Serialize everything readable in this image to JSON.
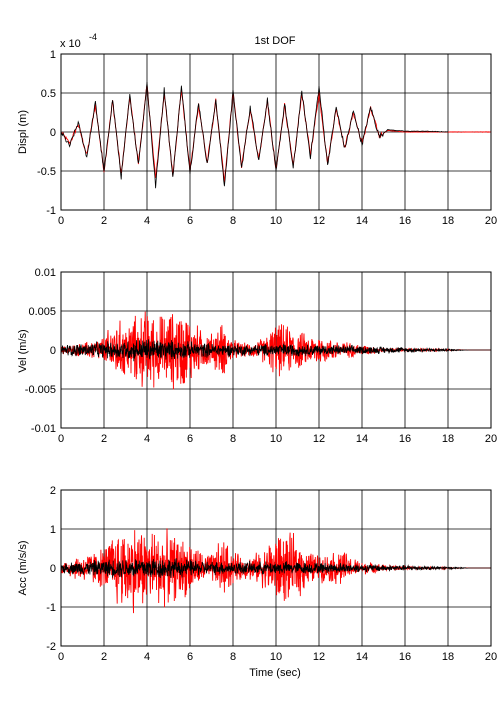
{
  "chart_data": [
    {
      "type": "line",
      "title": "1st DOF",
      "xlabel": "",
      "ylabel": "Displ (m)",
      "scale_label": "x 10",
      "scale_exponent": "-4",
      "xlim": [
        0,
        20
      ],
      "ylim": [
        -1,
        1
      ],
      "xticks": [
        "0",
        "2",
        "4",
        "6",
        "8",
        "10",
        "12",
        "14",
        "16",
        "18",
        "20"
      ],
      "yticks": [
        "1",
        "0.5",
        "0",
        "-0.5",
        "-1"
      ],
      "ytick_values": [
        1,
        0.5,
        0,
        -0.5,
        -1
      ],
      "grid": true,
      "colors": {
        "red": "#ff0000",
        "black": "#000000"
      },
      "series": [
        {
          "color": "#ff0000",
          "x": [
            0,
            0.4,
            0.8,
            1.2,
            1.6,
            2.0,
            2.4,
            2.8,
            3.2,
            3.6,
            4.0,
            4.4,
            4.8,
            5.2,
            5.6,
            6.0,
            6.4,
            6.8,
            7.2,
            7.6,
            8.0,
            8.4,
            8.8,
            9.2,
            9.6,
            10.0,
            10.4,
            10.8,
            11.2,
            11.6,
            12.0,
            12.4,
            12.8,
            13.2,
            13.6,
            14.0,
            14.4,
            14.8,
            15.2,
            15.6,
            16,
            17,
            18,
            19,
            20
          ],
          "y": [
            0,
            -0.15,
            0.1,
            -0.3,
            0.35,
            -0.5,
            0.4,
            -0.55,
            0.45,
            -0.4,
            0.6,
            -0.6,
            0.5,
            -0.55,
            0.55,
            -0.5,
            0.35,
            -0.4,
            0.4,
            -0.65,
            0.5,
            -0.45,
            0.3,
            -0.35,
            0.4,
            -0.5,
            0.35,
            -0.45,
            0.5,
            -0.3,
            0.5,
            -0.4,
            0.3,
            -0.2,
            0.25,
            -0.15,
            0.3,
            -0.05,
            0.02,
            0.01,
            0,
            0,
            0,
            0,
            0
          ]
        },
        {
          "color": "#000000",
          "x": [
            0,
            0.4,
            0.8,
            1.2,
            1.6,
            2.0,
            2.4,
            2.8,
            3.2,
            3.6,
            4.0,
            4.4,
            4.8,
            5.2,
            5.6,
            6.0,
            6.4,
            6.8,
            7.2,
            7.6,
            8.0,
            8.4,
            8.8,
            9.2,
            9.6,
            10.0,
            10.4,
            10.8,
            11.2,
            11.6,
            12.0,
            12.4,
            12.8,
            13.2,
            13.6,
            14.0,
            14.4,
            14.8,
            15.2,
            15.6,
            16,
            17,
            18
          ],
          "y": [
            0,
            -0.18,
            0.12,
            -0.32,
            0.38,
            -0.52,
            0.42,
            -0.58,
            0.47,
            -0.42,
            0.63,
            -0.7,
            0.55,
            -0.58,
            0.58,
            -0.52,
            0.38,
            -0.42,
            0.42,
            -0.7,
            0.52,
            -0.47,
            0.32,
            -0.36,
            0.42,
            -0.52,
            0.37,
            -0.47,
            0.52,
            -0.32,
            0.58,
            -0.42,
            0.32,
            -0.22,
            0.27,
            -0.16,
            0.32,
            -0.06,
            0.03,
            0.02,
            0.01,
            0.01,
            0
          ]
        }
      ]
    },
    {
      "type": "line",
      "title": "",
      "xlabel": "",
      "ylabel": "Vel (m/s)",
      "xlim": [
        0,
        20
      ],
      "ylim": [
        -0.01,
        0.01
      ],
      "xticks": [
        "0",
        "2",
        "4",
        "6",
        "8",
        "10",
        "12",
        "14",
        "16",
        "18",
        "20"
      ],
      "yticks": [
        "0.01",
        "0.005",
        "0",
        "-0.005",
        "-0.01"
      ],
      "ytick_values": [
        0.01,
        0.005,
        0,
        -0.005,
        -0.01
      ],
      "grid": true,
      "series": [
        {
          "color": "#ff0000",
          "envelope_t": [
            0,
            1,
            2,
            2.5,
            3,
            3.5,
            4,
            4.5,
            5,
            5.5,
            6,
            6.5,
            7,
            7.5,
            8,
            8.5,
            9,
            9.5,
            10,
            10.5,
            11,
            11.5,
            12,
            12.5,
            13,
            13.5,
            14,
            14.5,
            15,
            16,
            17,
            18,
            19,
            20
          ],
          "envelope_amp": [
            0.0005,
            0.001,
            0.002,
            0.0045,
            0.004,
            0.005,
            0.006,
            0.005,
            0.0055,
            0.006,
            0.005,
            0.003,
            0.0025,
            0.004,
            0.0015,
            0.001,
            0.0012,
            0.002,
            0.004,
            0.0035,
            0.003,
            0.002,
            0.0025,
            0.0015,
            0.0015,
            0.001,
            0.0008,
            0.0006,
            0.0003,
            0.0002,
            0.0002,
            0.0001,
            0,
            0
          ]
        },
        {
          "color": "#000000",
          "envelope_t": [
            0,
            1,
            2,
            3,
            4,
            5,
            6,
            7,
            8,
            9,
            10,
            11,
            12,
            13,
            14,
            15,
            16,
            17,
            18,
            19,
            20
          ],
          "envelope_amp": [
            0.0008,
            0.001,
            0.0012,
            0.0015,
            0.0018,
            0.0015,
            0.0012,
            0.001,
            0.0009,
            0.0008,
            0.001,
            0.0009,
            0.0008,
            0.0007,
            0.0006,
            0.0005,
            0.0004,
            0.0003,
            0.0002,
            0,
            0
          ]
        }
      ]
    },
    {
      "type": "line",
      "title": "",
      "xlabel": "Time (sec)",
      "ylabel": "Acc (m/s/s)",
      "xlim": [
        0,
        20
      ],
      "ylim": [
        -2,
        2
      ],
      "xticks": [
        "0",
        "2",
        "4",
        "6",
        "8",
        "10",
        "12",
        "14",
        "16",
        "18",
        "20"
      ],
      "yticks": [
        "2",
        "1",
        "0",
        "-1",
        "-2"
      ],
      "ytick_values": [
        2,
        1,
        0,
        -1,
        -2
      ],
      "grid": true,
      "series": [
        {
          "color": "#ff0000",
          "envelope_t": [
            0,
            1,
            2,
            2.5,
            3,
            3.5,
            4,
            4.5,
            5,
            5.5,
            6,
            6.5,
            7,
            7.5,
            8,
            8.5,
            9,
            9.5,
            10,
            10.5,
            11,
            11.5,
            12,
            12.5,
            13,
            13.5,
            14,
            14.5,
            15,
            16,
            17,
            18,
            19,
            20
          ],
          "envelope_amp": [
            0.2,
            0.4,
            0.6,
            1.1,
            1.2,
            1.3,
            1.1,
            1.2,
            1.0,
            0.9,
            0.8,
            0.5,
            0.4,
            0.9,
            0.5,
            0.3,
            0.4,
            0.6,
            1.1,
            1.0,
            0.9,
            0.5,
            0.4,
            0.4,
            0.6,
            0.3,
            0.2,
            0.15,
            0.1,
            0.05,
            0.03,
            0.02,
            0,
            0
          ]
        },
        {
          "color": "#000000",
          "envelope_t": [
            0,
            1,
            2,
            3,
            4,
            5,
            6,
            7,
            8,
            9,
            10,
            11,
            12,
            13,
            14,
            15,
            16,
            17,
            18,
            19,
            20
          ],
          "envelope_amp": [
            0.15,
            0.2,
            0.25,
            0.3,
            0.35,
            0.3,
            0.25,
            0.2,
            0.2,
            0.18,
            0.2,
            0.18,
            0.16,
            0.15,
            0.12,
            0.1,
            0.08,
            0.06,
            0.04,
            0,
            0
          ]
        }
      ]
    }
  ]
}
